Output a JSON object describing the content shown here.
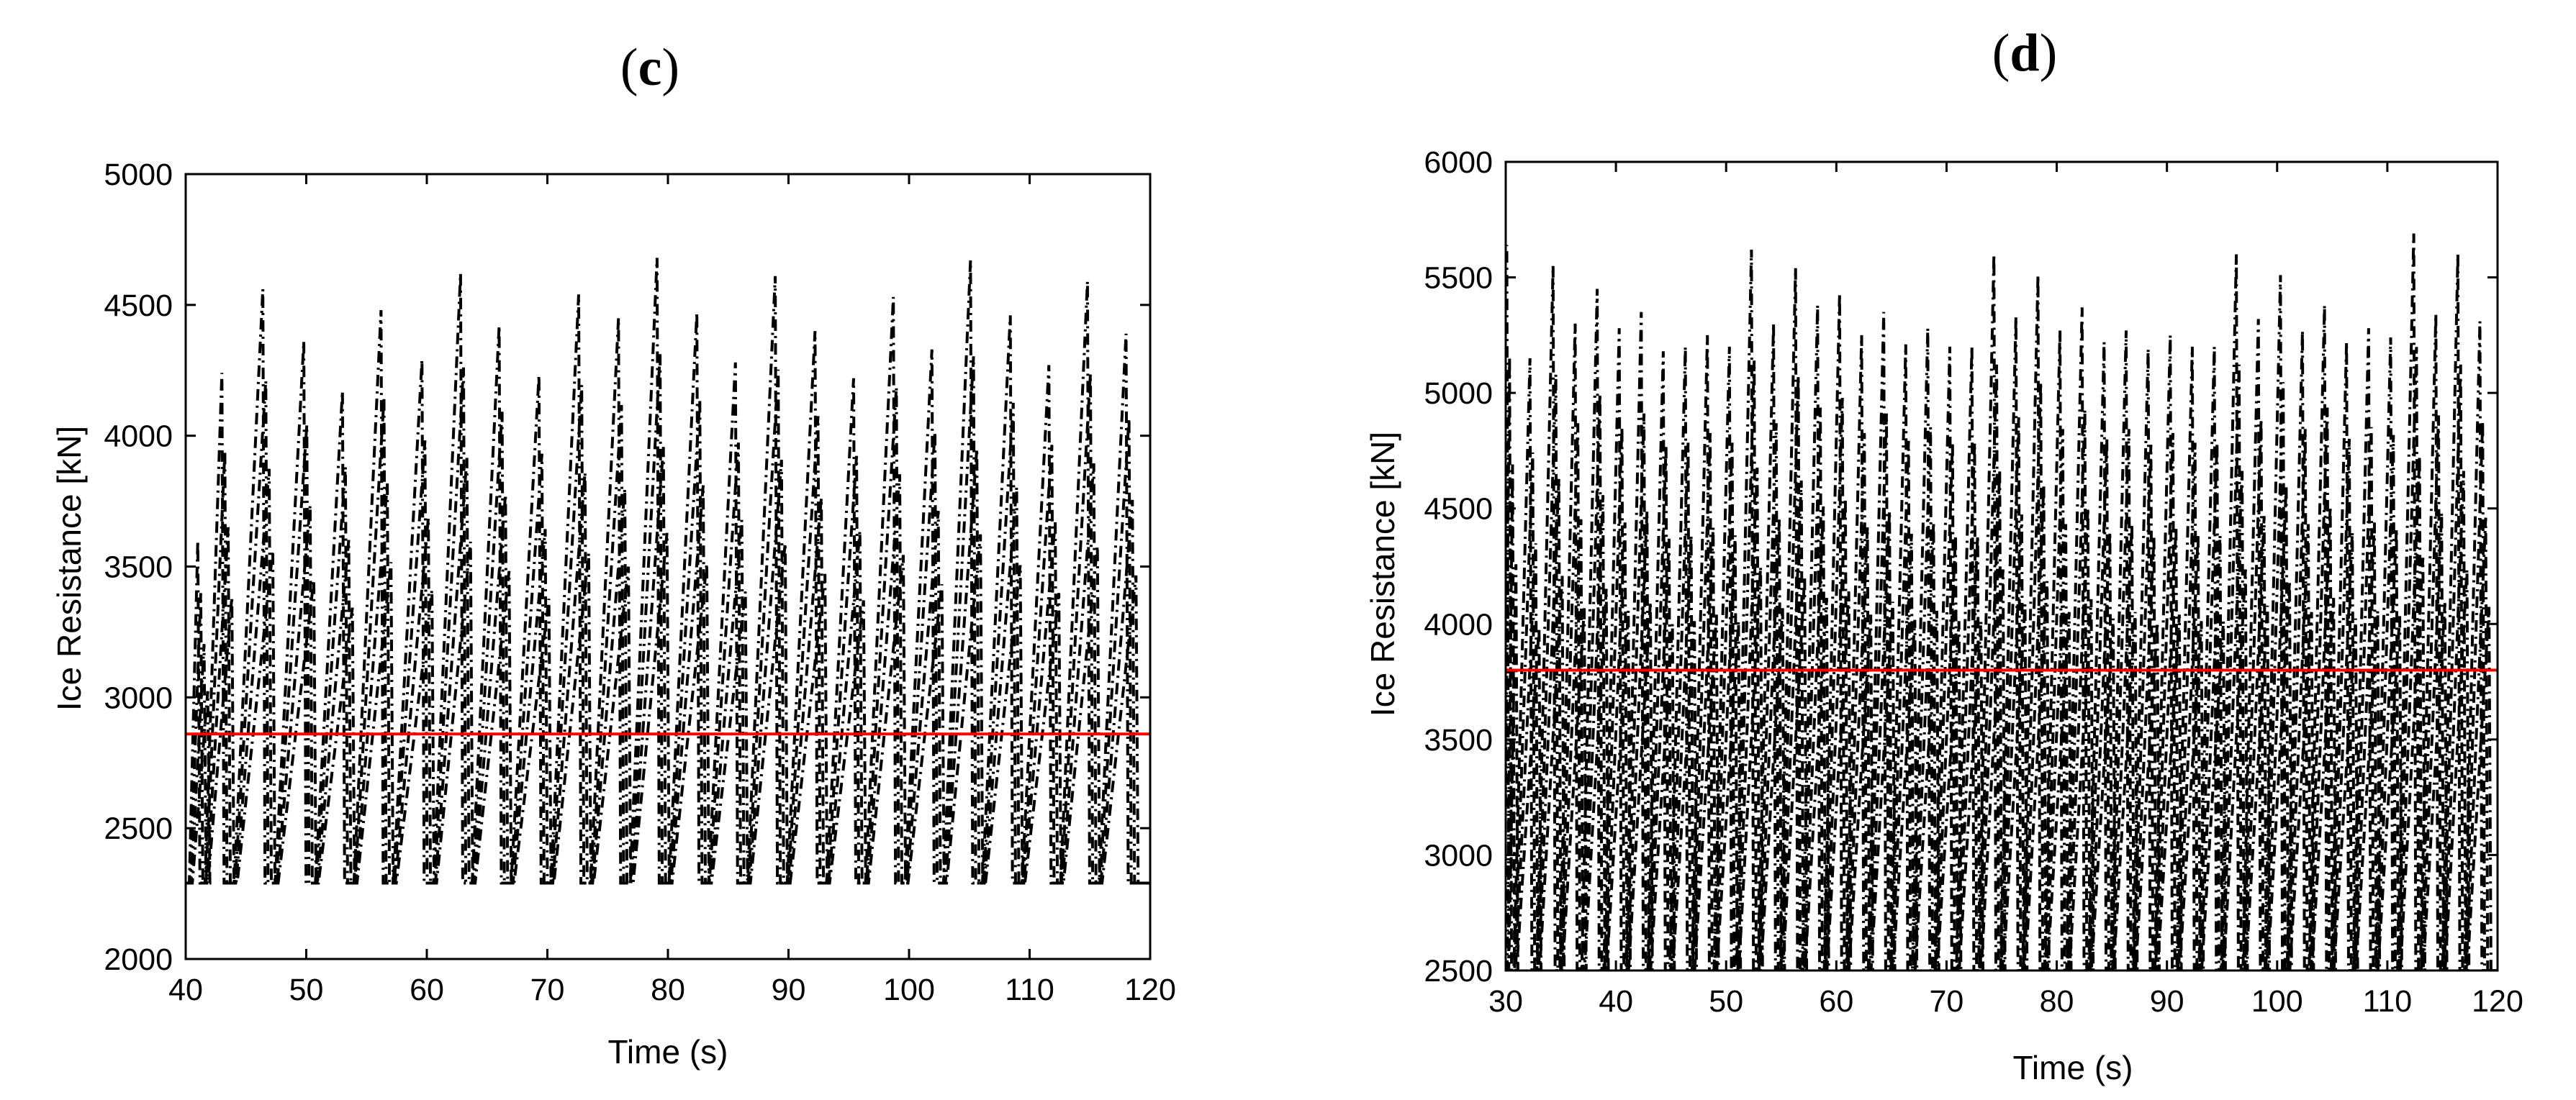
{
  "chart_data": [
    {
      "type": "line",
      "panel": "c",
      "xlabel": "Time (s)",
      "ylabel": "Ice Resistance [kN]",
      "xlim": [
        40,
        120
      ],
      "ylim": [
        2000,
        5000
      ],
      "xticks": [
        40,
        50,
        60,
        70,
        80,
        90,
        100,
        110,
        120
      ],
      "yticks": [
        2000,
        2500,
        3000,
        3500,
        4000,
        4500,
        5000
      ],
      "grid": false,
      "series": [
        {
          "style": "dash-dot",
          "color": "#000000",
          "baseline": 2290,
          "peaks": [
            [
              41.0,
              3600
            ],
            [
              43.0,
              4240
            ],
            [
              46.4,
              4560
            ],
            [
              49.8,
              4360
            ],
            [
              53.0,
              4170
            ],
            [
              56.2,
              4480
            ],
            [
              59.6,
              4290
            ],
            [
              62.8,
              4620
            ],
            [
              66.0,
              4420
            ],
            [
              69.3,
              4230
            ],
            [
              72.6,
              4540
            ],
            [
              75.9,
              4450
            ],
            [
              79.1,
              4680
            ],
            [
              82.4,
              4470
            ],
            [
              85.6,
              4280
            ],
            [
              88.9,
              4610
            ],
            [
              92.2,
              4400
            ],
            [
              95.4,
              4220
            ],
            [
              98.7,
              4530
            ],
            [
              101.9,
              4330
            ],
            [
              105.1,
              4670
            ],
            [
              108.4,
              4460
            ],
            [
              111.6,
              4270
            ],
            [
              114.8,
              4590
            ],
            [
              118.0,
              4390
            ]
          ]
        },
        {
          "style": "solid",
          "color": "#ff0000",
          "x": [
            40,
            120
          ],
          "y": [
            2860,
            2860
          ]
        }
      ]
    },
    {
      "type": "line",
      "panel": "d",
      "xlabel": "Time (s)",
      "ylabel": "Ice Resistance [kN]",
      "xlim": [
        30,
        120
      ],
      "ylim": [
        2500,
        6000
      ],
      "xticks": [
        30,
        40,
        50,
        60,
        70,
        80,
        90,
        100,
        110,
        120
      ],
      "yticks": [
        2500,
        3000,
        3500,
        4000,
        4500,
        5000,
        5500,
        6000
      ],
      "grid": false,
      "series": [
        {
          "style": "dash-dot",
          "color": "#000000",
          "baseline": 2500,
          "peaks": [
            [
              30.1,
              5640
            ],
            [
              32.2,
              5150
            ],
            [
              34.3,
              5550
            ],
            [
              36.3,
              5300
            ],
            [
              38.3,
              5450
            ],
            [
              40.3,
              5280
            ],
            [
              42.3,
              5350
            ],
            [
              44.3,
              5180
            ],
            [
              46.3,
              5200
            ],
            [
              48.3,
              5250
            ],
            [
              50.3,
              5200
            ],
            [
              52.3,
              5620
            ],
            [
              54.3,
              5300
            ],
            [
              56.3,
              5540
            ],
            [
              58.3,
              5380
            ],
            [
              60.3,
              5430
            ],
            [
              62.3,
              5250
            ],
            [
              64.3,
              5350
            ],
            [
              66.3,
              5210
            ],
            [
              68.3,
              5280
            ],
            [
              70.3,
              5200
            ],
            [
              72.3,
              5200
            ],
            [
              74.3,
              5600
            ],
            [
              76.3,
              5330
            ],
            [
              78.3,
              5510
            ],
            [
              80.3,
              5270
            ],
            [
              82.3,
              5370
            ],
            [
              84.3,
              5220
            ],
            [
              86.3,
              5270
            ],
            [
              88.3,
              5190
            ],
            [
              90.3,
              5250
            ],
            [
              92.3,
              5200
            ],
            [
              94.3,
              5200
            ],
            [
              96.3,
              5600
            ],
            [
              98.3,
              5320
            ],
            [
              100.3,
              5510
            ],
            [
              102.3,
              5270
            ],
            [
              104.3,
              5380
            ],
            [
              106.3,
              5220
            ],
            [
              108.3,
              5280
            ],
            [
              110.3,
              5240
            ],
            [
              112.4,
              5690
            ],
            [
              114.4,
              5340
            ],
            [
              116.4,
              5600
            ],
            [
              118.4,
              5310
            ]
          ]
        },
        {
          "style": "solid",
          "color": "#ff0000",
          "x": [
            30,
            120
          ],
          "y": [
            3800,
            3800
          ]
        }
      ]
    }
  ]
}
